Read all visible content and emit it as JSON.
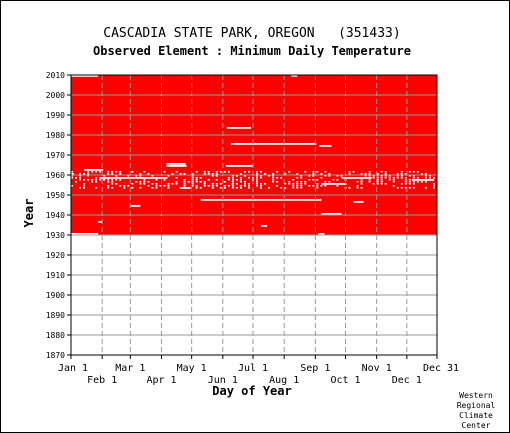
{
  "chart_data": {
    "type": "heatmap",
    "title": "CASCADIA STATE PARK, OREGON   (351433)",
    "subtitle": "Observed Element : Minimum Daily Temperature",
    "xlabel": "Day of Year",
    "ylabel": "Year",
    "xlim": [
      1,
      365
    ],
    "ylim": [
      1870,
      2010
    ],
    "x_tick_labels_top": [
      "Jan 1",
      "Mar 1",
      "May 1",
      "Jul 1",
      "Sep 1",
      "Nov 1",
      "Dec 31"
    ],
    "x_tick_labels_bottom": [
      "Feb 1",
      "Apr 1",
      "Jun 1",
      "Aug 1",
      "Oct 1",
      "Dec 1"
    ],
    "y_ticks": [
      1870,
      1880,
      1890,
      1900,
      1910,
      1920,
      1930,
      1940,
      1950,
      1960,
      1970,
      1980,
      1990,
      2000,
      2010
    ],
    "grid": true,
    "data_color": "#ff0000",
    "background_color": "#ffffff",
    "data_period": [
      1930,
      2010
    ],
    "missing_segments": [
      {
        "year": 2009,
        "day_start": 1,
        "day_end": 28
      },
      {
        "year": 2009,
        "day_start": 220,
        "day_end": 226
      },
      {
        "year": 1983,
        "day_start": 156,
        "day_end": 180
      },
      {
        "year": 1975,
        "day_start": 160,
        "day_end": 245
      },
      {
        "year": 1974,
        "day_start": 248,
        "day_end": 260
      },
      {
        "year": 1965,
        "day_start": 96,
        "day_end": 115
      },
      {
        "year": 1964,
        "day_start": 96,
        "day_end": 116
      },
      {
        "year": 1964,
        "day_start": 155,
        "day_end": 182
      },
      {
        "year": 1962,
        "day_start": 14,
        "day_end": 33
      },
      {
        "year": 1960,
        "day_start": 2,
        "day_end": 4
      },
      {
        "year": 1958,
        "day_start": 30,
        "day_end": 97
      },
      {
        "year": 1958,
        "day_start": 270,
        "day_end": 300
      },
      {
        "year": 1957,
        "day_start": 340,
        "day_end": 362
      },
      {
        "year": 1955,
        "day_start": 250,
        "day_end": 275
      },
      {
        "year": 1953,
        "day_start": 110,
        "day_end": 120
      },
      {
        "year": 1947,
        "day_start": 130,
        "day_end": 250
      },
      {
        "year": 1946,
        "day_start": 282,
        "day_end": 292
      },
      {
        "year": 1944,
        "day_start": 60,
        "day_end": 70
      },
      {
        "year": 1940,
        "day_start": 250,
        "day_end": 270
      },
      {
        "year": 1936,
        "day_start": 28,
        "day_end": 32
      },
      {
        "year": 1934,
        "day_start": 190,
        "day_end": 196
      },
      {
        "year": 1930,
        "day_start": 1,
        "day_end": 28
      },
      {
        "year": 1930,
        "day_start": 247,
        "day_end": 253
      }
    ]
  },
  "footer": {
    "line1": "Western",
    "line2": "Regional",
    "line3": "Climate",
    "line4": "Center"
  }
}
